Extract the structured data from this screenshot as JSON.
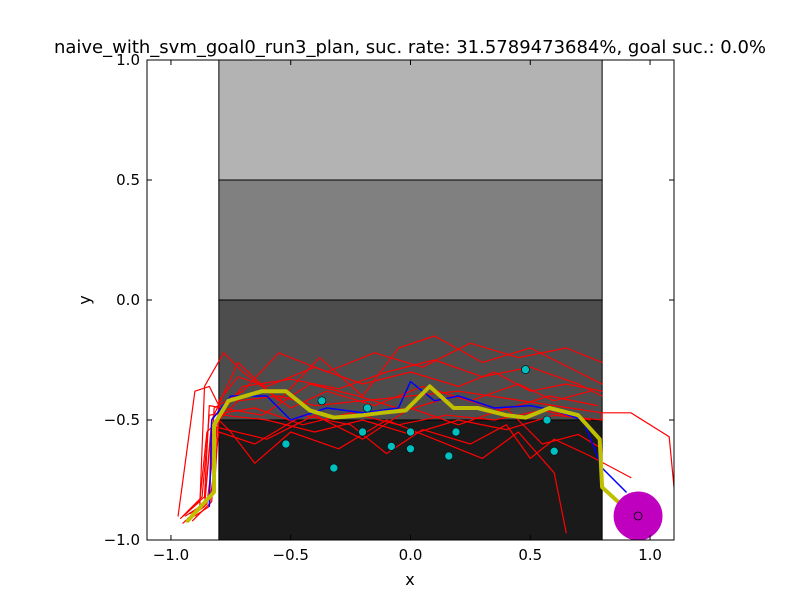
{
  "chart_data": {
    "type": "line",
    "title": "naive_with_svm_goal0_run3_plan, suc. rate: 31.5789473684%, goal suc.: 0.0%",
    "xlabel": "x",
    "ylabel": "y",
    "xlim": [
      -1.1,
      1.1
    ],
    "ylim": [
      -1.0,
      1.0
    ],
    "x_ticks": [
      -1.0,
      -0.5,
      0.0,
      0.5,
      1.0
    ],
    "x_tick_labels": [
      "−1.0",
      "−0.5",
      "0.0",
      "0.5",
      "1.0"
    ],
    "y_ticks": [
      -1.0,
      -0.5,
      0.0,
      0.5,
      1.0
    ],
    "y_tick_labels": [
      "−1.0",
      "−0.5",
      "0.0",
      "0.5",
      "1.0"
    ],
    "grid": false,
    "regions": [
      {
        "x": [
          -0.8,
          0.8
        ],
        "y": [
          0.5,
          1.0
        ],
        "color": "#b3b3b3"
      },
      {
        "x": [
          -0.8,
          0.8
        ],
        "y": [
          0.0,
          0.5
        ],
        "color": "#808080"
      },
      {
        "x": [
          -0.8,
          0.8
        ],
        "y": [
          -0.5,
          0.0
        ],
        "color": "#4d4d4d"
      },
      {
        "x": [
          -0.8,
          0.8
        ],
        "y": [
          -1.0,
          -0.5
        ],
        "color": "#1a1a1a"
      }
    ],
    "goal": {
      "x": 0.95,
      "y": -0.9,
      "radius": 0.1,
      "color": "#bf00bf"
    },
    "obstacle_points": {
      "color": "#00bfbf",
      "points": [
        [
          -0.52,
          -0.6
        ],
        [
          -0.37,
          -0.42
        ],
        [
          -0.32,
          -0.7
        ],
        [
          -0.2,
          -0.55
        ],
        [
          -0.18,
          -0.45
        ],
        [
          -0.08,
          -0.61
        ],
        [
          0.0,
          -0.55
        ],
        [
          0.0,
          -0.62
        ],
        [
          0.16,
          -0.65
        ],
        [
          0.19,
          -0.55
        ],
        [
          0.48,
          -0.29
        ],
        [
          0.57,
          -0.5
        ],
        [
          0.6,
          -0.63
        ]
      ]
    },
    "series": [
      {
        "color": "#ff0000",
        "width": 1.2,
        "lines": [
          [
            [
              -0.96,
              -0.91
            ],
            [
              -0.88,
              -0.84
            ],
            [
              -0.85,
              -0.55
            ],
            [
              -0.72,
              -0.42
            ],
            [
              -0.55,
              -0.4
            ],
            [
              -0.4,
              -0.44
            ],
            [
              -0.2,
              -0.42
            ],
            [
              0.0,
              -0.4
            ],
            [
              0.2,
              -0.38
            ],
            [
              0.4,
              -0.41
            ],
            [
              0.6,
              -0.44
            ],
            [
              0.8,
              -0.47
            ]
          ],
          [
            [
              -0.94,
              -0.92
            ],
            [
              -0.86,
              -0.86
            ],
            [
              -0.83,
              -0.52
            ],
            [
              -0.7,
              -0.36
            ],
            [
              -0.5,
              -0.33
            ],
            [
              -0.3,
              -0.37
            ],
            [
              -0.1,
              -0.3
            ],
            [
              0.1,
              -0.25
            ],
            [
              0.3,
              -0.32
            ],
            [
              0.5,
              -0.28
            ],
            [
              0.7,
              -0.35
            ],
            [
              0.8,
              -0.4
            ]
          ],
          [
            [
              -0.95,
              -0.9
            ],
            [
              -0.87,
              -0.82
            ],
            [
              -0.84,
              -0.48
            ],
            [
              -0.65,
              -0.45
            ],
            [
              -0.45,
              -0.52
            ],
            [
              -0.25,
              -0.47
            ],
            [
              -0.05,
              -0.52
            ],
            [
              0.15,
              -0.48
            ],
            [
              0.35,
              -0.5
            ],
            [
              0.55,
              -0.46
            ],
            [
              0.75,
              -0.5
            ]
          ],
          [
            [
              -0.9,
              -0.88
            ],
            [
              -0.82,
              -0.8
            ],
            [
              -0.8,
              -0.5
            ],
            [
              -0.75,
              -0.55
            ],
            [
              -0.65,
              -0.68
            ],
            [
              -0.5,
              -0.55
            ],
            [
              -0.3,
              -0.62
            ],
            [
              -0.1,
              -0.5
            ],
            [
              0.1,
              -0.58
            ],
            [
              0.3,
              -0.66
            ],
            [
              0.45,
              -0.55
            ],
            [
              0.6,
              -0.72
            ],
            [
              0.65,
              -0.97
            ]
          ],
          [
            [
              -0.92,
              -0.89
            ],
            [
              -0.84,
              -0.83
            ],
            [
              -0.82,
              -0.45
            ],
            [
              -0.7,
              -0.38
            ],
            [
              -0.55,
              -0.22
            ],
            [
              -0.35,
              -0.3
            ],
            [
              -0.15,
              -0.22
            ],
            [
              0.05,
              -0.28
            ],
            [
              0.25,
              -0.18
            ],
            [
              0.45,
              -0.24
            ],
            [
              0.65,
              -0.2
            ],
            [
              0.8,
              -0.26
            ]
          ],
          [
            [
              -0.93,
              -0.91
            ],
            [
              -0.85,
              -0.85
            ],
            [
              -0.81,
              -0.53
            ],
            [
              -0.6,
              -0.58
            ],
            [
              -0.4,
              -0.48
            ],
            [
              -0.2,
              -0.58
            ],
            [
              0.0,
              -0.45
            ],
            [
              0.2,
              -0.52
            ],
            [
              0.4,
              -0.45
            ],
            [
              0.55,
              -0.6
            ],
            [
              0.7,
              -0.56
            ],
            [
              0.8,
              -0.62
            ]
          ],
          [
            [
              -0.91,
              -0.92
            ],
            [
              -0.83,
              -0.84
            ],
            [
              -0.8,
              -0.42
            ],
            [
              -0.72,
              -0.32
            ],
            [
              -0.6,
              -0.36
            ],
            [
              -0.4,
              -0.28
            ],
            [
              -0.2,
              -0.35
            ],
            [
              0.0,
              -0.3
            ],
            [
              0.2,
              -0.36
            ],
            [
              0.35,
              -0.3
            ],
            [
              0.5,
              -0.38
            ],
            [
              0.65,
              -0.35
            ],
            [
              0.8,
              -0.38
            ]
          ],
          [
            [
              -0.97,
              -0.9
            ],
            [
              -0.9,
              -0.38
            ],
            [
              -0.84,
              -0.36
            ],
            [
              -0.78,
              -0.48
            ],
            [
              -0.6,
              -0.5
            ],
            [
              -0.4,
              -0.55
            ],
            [
              -0.2,
              -0.5
            ],
            [
              0.0,
              -0.56
            ],
            [
              0.2,
              -0.5
            ],
            [
              0.4,
              -0.54
            ],
            [
              0.6,
              -0.48
            ],
            [
              0.8,
              -0.5
            ],
            [
              0.8,
              -0.47
            ],
            [
              0.92,
              -0.47
            ],
            [
              1.08,
              -0.57
            ],
            [
              1.1,
              -0.78
            ]
          ],
          [
            [
              -0.95,
              -0.93
            ],
            [
              -0.88,
              -0.87
            ],
            [
              -0.86,
              -0.36
            ],
            [
              -0.78,
              -0.22
            ],
            [
              -0.7,
              -0.3
            ],
            [
              -0.5,
              -0.45
            ],
            [
              -0.35,
              -0.38
            ],
            [
              -0.15,
              -0.44
            ],
            [
              0.05,
              -0.36
            ],
            [
              0.25,
              -0.42
            ],
            [
              0.45,
              -0.35
            ],
            [
              0.6,
              -0.42
            ],
            [
              0.75,
              -0.38
            ]
          ],
          [
            [
              -0.9,
              -0.9
            ],
            [
              -0.84,
              -0.86
            ],
            [
              -0.8,
              -0.55
            ],
            [
              -0.65,
              -0.6
            ],
            [
              -0.45,
              -0.48
            ],
            [
              -0.25,
              -0.52
            ],
            [
              -0.1,
              -0.64
            ],
            [
              0.05,
              -0.54
            ],
            [
              0.25,
              -0.6
            ],
            [
              0.4,
              -0.52
            ],
            [
              0.5,
              -0.66
            ],
            [
              0.6,
              -0.58
            ],
            [
              0.75,
              -0.65
            ],
            [
              0.92,
              -0.74
            ]
          ],
          [
            [
              -0.94,
              -0.9
            ],
            [
              -0.86,
              -0.85
            ],
            [
              -0.83,
              -0.5
            ],
            [
              -0.72,
              -0.26
            ],
            [
              -0.55,
              -0.42
            ],
            [
              -0.38,
              -0.24
            ],
            [
              -0.2,
              -0.4
            ],
            [
              -0.05,
              -0.2
            ],
            [
              0.1,
              -0.15
            ],
            [
              0.3,
              -0.26
            ],
            [
              0.5,
              -0.2
            ],
            [
              0.7,
              -0.3
            ],
            [
              0.8,
              -0.35
            ]
          ],
          [
            [
              -0.93,
              -0.88
            ],
            [
              -0.86,
              -0.82
            ],
            [
              -0.84,
              -0.44
            ],
            [
              -0.62,
              -0.48
            ],
            [
              -0.42,
              -0.35
            ],
            [
              -0.22,
              -0.4
            ],
            [
              -0.02,
              -0.46
            ],
            [
              0.18,
              -0.4
            ],
            [
              0.38,
              -0.46
            ],
            [
              0.58,
              -0.4
            ],
            [
              0.78,
              -0.44
            ]
          ]
        ]
      },
      {
        "color": "#0000ff",
        "width": 1.5,
        "lines": [
          [
            [
              -0.84,
              -0.86
            ],
            [
              -0.83,
              -0.5
            ],
            [
              -0.75,
              -0.4
            ],
            [
              -0.6,
              -0.4
            ],
            [
              -0.5,
              -0.5
            ],
            [
              -0.35,
              -0.45
            ],
            [
              -0.2,
              -0.47
            ],
            [
              -0.05,
              -0.45
            ],
            [
              0.0,
              -0.34
            ],
            [
              0.1,
              -0.42
            ],
            [
              0.2,
              -0.4
            ],
            [
              0.35,
              -0.45
            ],
            [
              0.5,
              -0.44
            ],
            [
              0.6,
              -0.46
            ],
            [
              0.72,
              -0.5
            ],
            [
              0.8,
              -0.7
            ],
            [
              0.9,
              -0.8
            ]
          ]
        ]
      },
      {
        "color": "#bfbf00",
        "width": 4,
        "lines": [
          [
            [
              -0.93,
              -0.92
            ],
            [
              -0.82,
              -0.8
            ],
            [
              -0.82,
              -0.52
            ],
            [
              -0.76,
              -0.42
            ],
            [
              -0.62,
              -0.38
            ],
            [
              -0.52,
              -0.38
            ],
            [
              -0.42,
              -0.46
            ],
            [
              -0.32,
              -0.49
            ],
            [
              -0.2,
              -0.48
            ],
            [
              -0.12,
              -0.47
            ],
            [
              -0.02,
              -0.46
            ],
            [
              0.08,
              -0.36
            ],
            [
              0.18,
              -0.45
            ],
            [
              0.28,
              -0.45
            ],
            [
              0.4,
              -0.48
            ],
            [
              0.48,
              -0.49
            ],
            [
              0.58,
              -0.45
            ],
            [
              0.7,
              -0.48
            ],
            [
              0.79,
              -0.58
            ],
            [
              0.8,
              -0.78
            ],
            [
              0.92,
              -0.89
            ]
          ]
        ]
      }
    ]
  }
}
